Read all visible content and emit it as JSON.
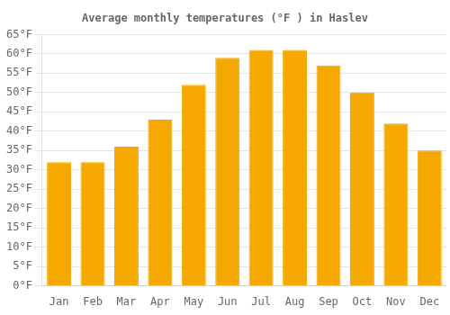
{
  "chart_data": {
    "type": "bar",
    "title": "Average monthly temperatures (°F ) in Haslev",
    "categories": [
      "Jan",
      "Feb",
      "Mar",
      "Apr",
      "May",
      "Jun",
      "Jul",
      "Aug",
      "Sep",
      "Oct",
      "Nov",
      "Dec"
    ],
    "values": [
      32,
      32,
      36,
      43,
      52,
      59,
      61,
      61,
      57,
      50,
      42,
      35
    ],
    "color": "#F5A800",
    "ylim": [
      0,
      65
    ],
    "yticks": [
      {
        "value": 0,
        "label": "0°F"
      },
      {
        "value": 5,
        "label": "5°F"
      },
      {
        "value": 10,
        "label": "10°F"
      },
      {
        "value": 15,
        "label": "15°F"
      },
      {
        "value": 20,
        "label": "20°F"
      },
      {
        "value": 25,
        "label": "25°F"
      },
      {
        "value": 30,
        "label": "30°F"
      },
      {
        "value": 35,
        "label": "35°F"
      },
      {
        "value": 40,
        "label": "40°F"
      },
      {
        "value": 45,
        "label": "45°F"
      },
      {
        "value": 50,
        "label": "50°F"
      },
      {
        "value": 55,
        "label": "55°F"
      },
      {
        "value": 60,
        "label": "60°F"
      },
      {
        "value": 65,
        "label": "65°F"
      }
    ],
    "grid": true
  }
}
